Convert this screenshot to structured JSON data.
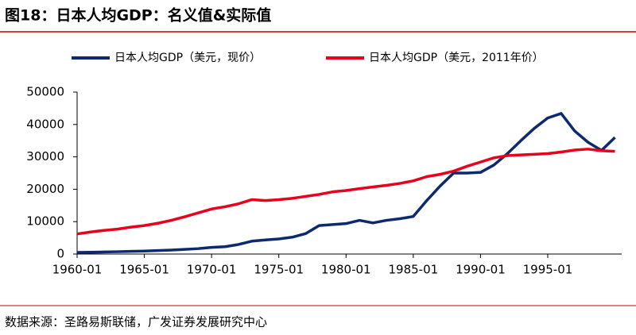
{
  "chart_data": {
    "type": "line",
    "title": "图18：日本人均GDP：名义值&实际值",
    "source": "数据来源：圣路易斯联储，广发证券发展研究中心",
    "x": [
      1960,
      1961,
      1962,
      1963,
      1964,
      1965,
      1966,
      1967,
      1968,
      1969,
      1970,
      1971,
      1972,
      1973,
      1974,
      1975,
      1976,
      1977,
      1978,
      1979,
      1980,
      1981,
      1982,
      1983,
      1984,
      1985,
      1986,
      1987,
      1988,
      1989,
      1990,
      1991,
      1992,
      1993,
      1994,
      1995,
      1996,
      1997,
      1998,
      1999,
      2000
    ],
    "series": [
      {
        "name": "日本人均GDP（美元，现价）",
        "color": "#0d2a6e",
        "values": [
          500,
          560,
          630,
          720,
          840,
          920,
          1060,
          1230,
          1450,
          1670,
          2040,
          2270,
          2950,
          3980,
          4350,
          4660,
          5200,
          6300,
          8800,
          9100,
          9400,
          10400,
          9600,
          10400,
          10900,
          11600,
          16500,
          21000,
          25000,
          25000,
          25200,
          27500,
          31000,
          35000,
          38800,
          42000,
          43400,
          38000,
          34500,
          32000,
          36000
        ]
      },
      {
        "name": "日本人均GDP（美元，2011年价）",
        "color": "#e8001c",
        "values": [
          6200,
          6800,
          7300,
          7700,
          8300,
          8800,
          9500,
          10400,
          11500,
          12700,
          13900,
          14600,
          15500,
          16800,
          16500,
          16800,
          17200,
          17800,
          18400,
          19200,
          19600,
          20200,
          20700,
          21200,
          21800,
          22600,
          23900,
          24600,
          25600,
          27100,
          28400,
          29700,
          30400,
          30600,
          30800,
          31000,
          31500,
          32100,
          32400,
          31900,
          31700
        ]
      }
    ],
    "xlim": [
      1960,
      2000.5
    ],
    "xticks": [
      {
        "value": 1960,
        "label": "1960-01"
      },
      {
        "value": 1965,
        "label": "1965-01"
      },
      {
        "value": 1970,
        "label": "1970-01"
      },
      {
        "value": 1975,
        "label": "1975-01"
      },
      {
        "value": 1980,
        "label": "1980-01"
      },
      {
        "value": 1985,
        "label": "1985-01"
      },
      {
        "value": 1990,
        "label": "1990-01"
      },
      {
        "value": 1995,
        "label": "1995-01"
      }
    ],
    "ylim": [
      0,
      50000
    ],
    "yticks": [
      0,
      10000,
      20000,
      30000,
      40000,
      50000
    ]
  }
}
